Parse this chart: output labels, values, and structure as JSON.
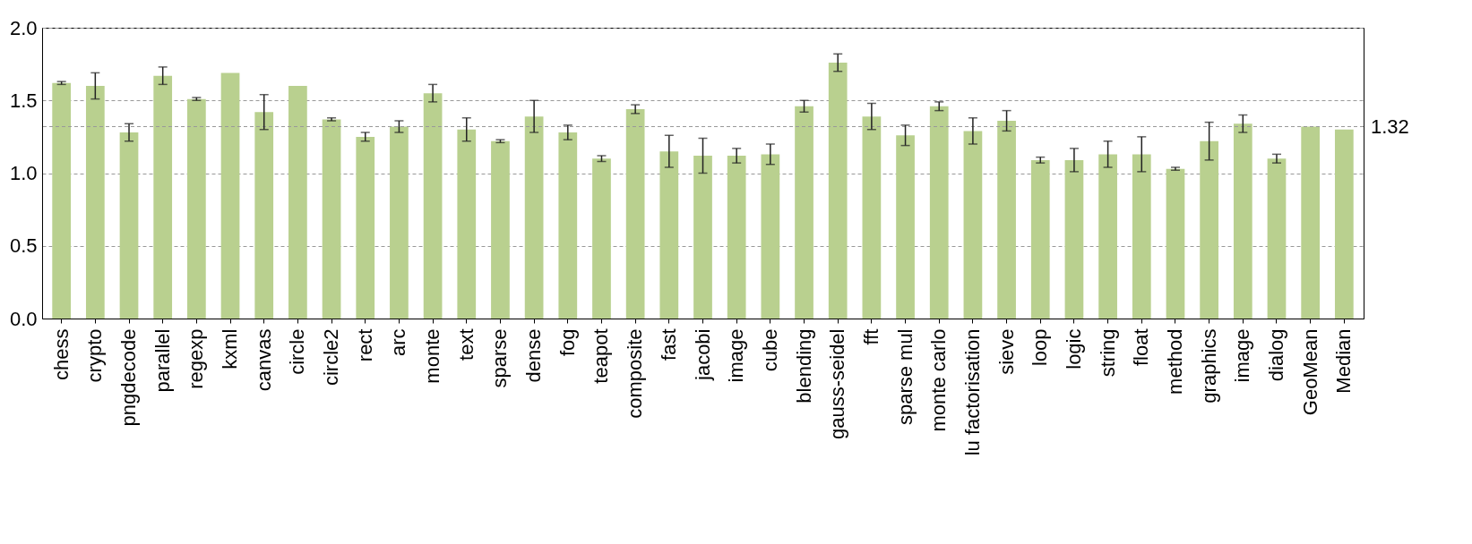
{
  "chart_data": {
    "type": "bar",
    "categories": [
      "chess",
      "crypto",
      "pngdecode",
      "parallel",
      "regexp",
      "kxml",
      "canvas",
      "circle",
      "circle2",
      "rect",
      "arc",
      "monte",
      "text",
      "sparse",
      "dense",
      "fog",
      "teapot",
      "composite",
      "fast",
      "jacobi",
      "image",
      "cube",
      "blending",
      "gauss-seidel",
      "fft",
      "sparse mul",
      "monte carlo",
      "lu factorisation",
      "sieve",
      "loop",
      "logic",
      "string",
      "float",
      "method",
      "graphics",
      "image",
      "dialog",
      "GeoMean",
      "Median"
    ],
    "values": [
      1.62,
      1.6,
      1.28,
      1.67,
      1.51,
      1.69,
      1.42,
      1.6,
      1.37,
      1.25,
      1.32,
      1.55,
      1.3,
      1.22,
      1.39,
      1.28,
      1.1,
      1.44,
      1.15,
      1.12,
      1.12,
      1.13,
      1.46,
      1.76,
      1.39,
      1.26,
      1.46,
      1.29,
      1.36,
      1.09,
      1.09,
      1.13,
      1.13,
      1.03,
      1.22,
      1.34,
      1.1,
      1.32,
      1.3
    ],
    "errors": [
      0.01,
      0.09,
      0.06,
      0.06,
      0.01,
      null,
      0.12,
      null,
      0.01,
      0.03,
      0.04,
      0.06,
      0.08,
      0.01,
      0.11,
      0.05,
      0.02,
      0.03,
      0.11,
      0.12,
      0.05,
      0.07,
      0.04,
      0.06,
      0.09,
      0.07,
      0.03,
      0.09,
      0.07,
      0.02,
      0.08,
      0.09,
      0.12,
      0.01,
      0.13,
      0.06,
      0.03,
      null,
      null
    ],
    "color": "#b9d08f",
    "ylim": [
      0,
      2
    ],
    "yticks": [
      {
        "value": 0,
        "label": "0.0"
      },
      {
        "value": 0.5,
        "label": "0.5"
      },
      {
        "value": 1,
        "label": "1.0"
      },
      {
        "value": 1.5,
        "label": "1.5"
      },
      {
        "value": 2,
        "label": "2.0"
      }
    ],
    "grid": "y",
    "ref_lines": [
      {
        "axis": "y",
        "value": 1.32,
        "label": "1.32"
      }
    ]
  }
}
